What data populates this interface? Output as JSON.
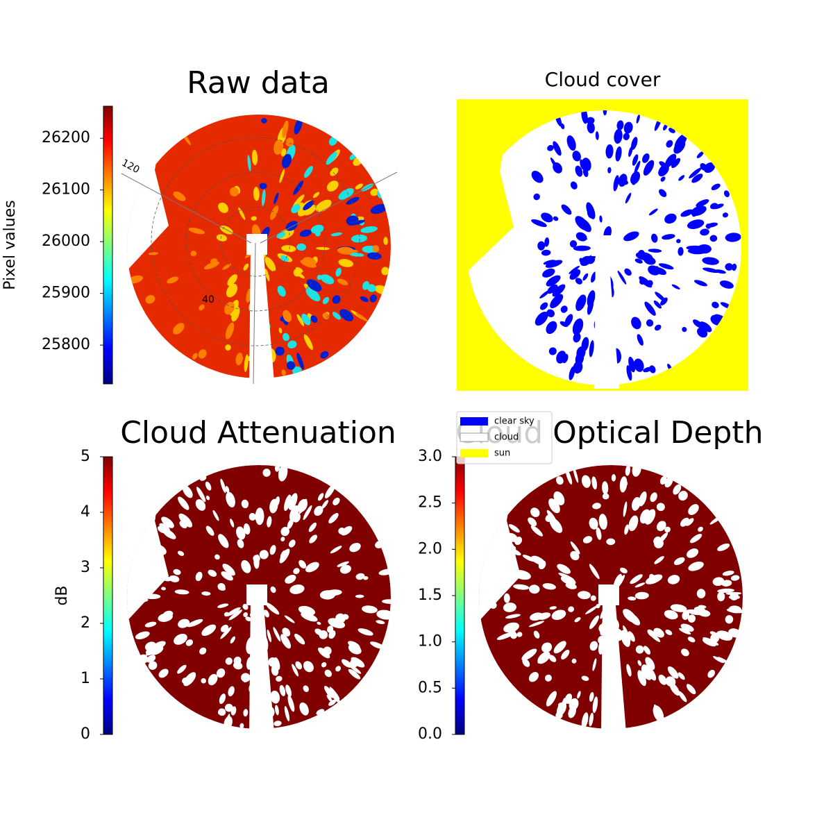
{
  "chart_data": [
    {
      "type": "image",
      "title": "Raw data",
      "colorbar_label": "Pixel values",
      "colormap": "jet",
      "ylim": [
        25725,
        26262
      ],
      "yticks": [
        25800,
        25900,
        26000,
        26100,
        26200
      ],
      "annotations": [
        "120",
        "40"
      ]
    },
    {
      "type": "image",
      "title": "Cloud cover",
      "series": [
        {
          "name": "clear sky",
          "color": "#0000ff"
        },
        {
          "name": "cloud",
          "color": "#ffffff"
        },
        {
          "name": "sun",
          "color": "#ffff00"
        }
      ]
    },
    {
      "type": "image",
      "title": "Cloud Attenuation",
      "colorbar_label": "dB",
      "colormap": "jet",
      "ylim": [
        0,
        5
      ],
      "yticks": [
        0,
        1,
        2,
        3,
        4,
        5
      ]
    },
    {
      "type": "image",
      "title": "Cloud Optical Depth",
      "colormap": "jet",
      "ylim": [
        0,
        3
      ],
      "yticks": [
        {
          "value": 0,
          "label": "0.0"
        },
        0.5,
        {
          "value": 1,
          "label": "1.0"
        },
        1.5,
        {
          "value": 2,
          "label": "2.0"
        },
        2.5,
        {
          "value": 3,
          "label": "3.0"
        }
      ]
    }
  ]
}
